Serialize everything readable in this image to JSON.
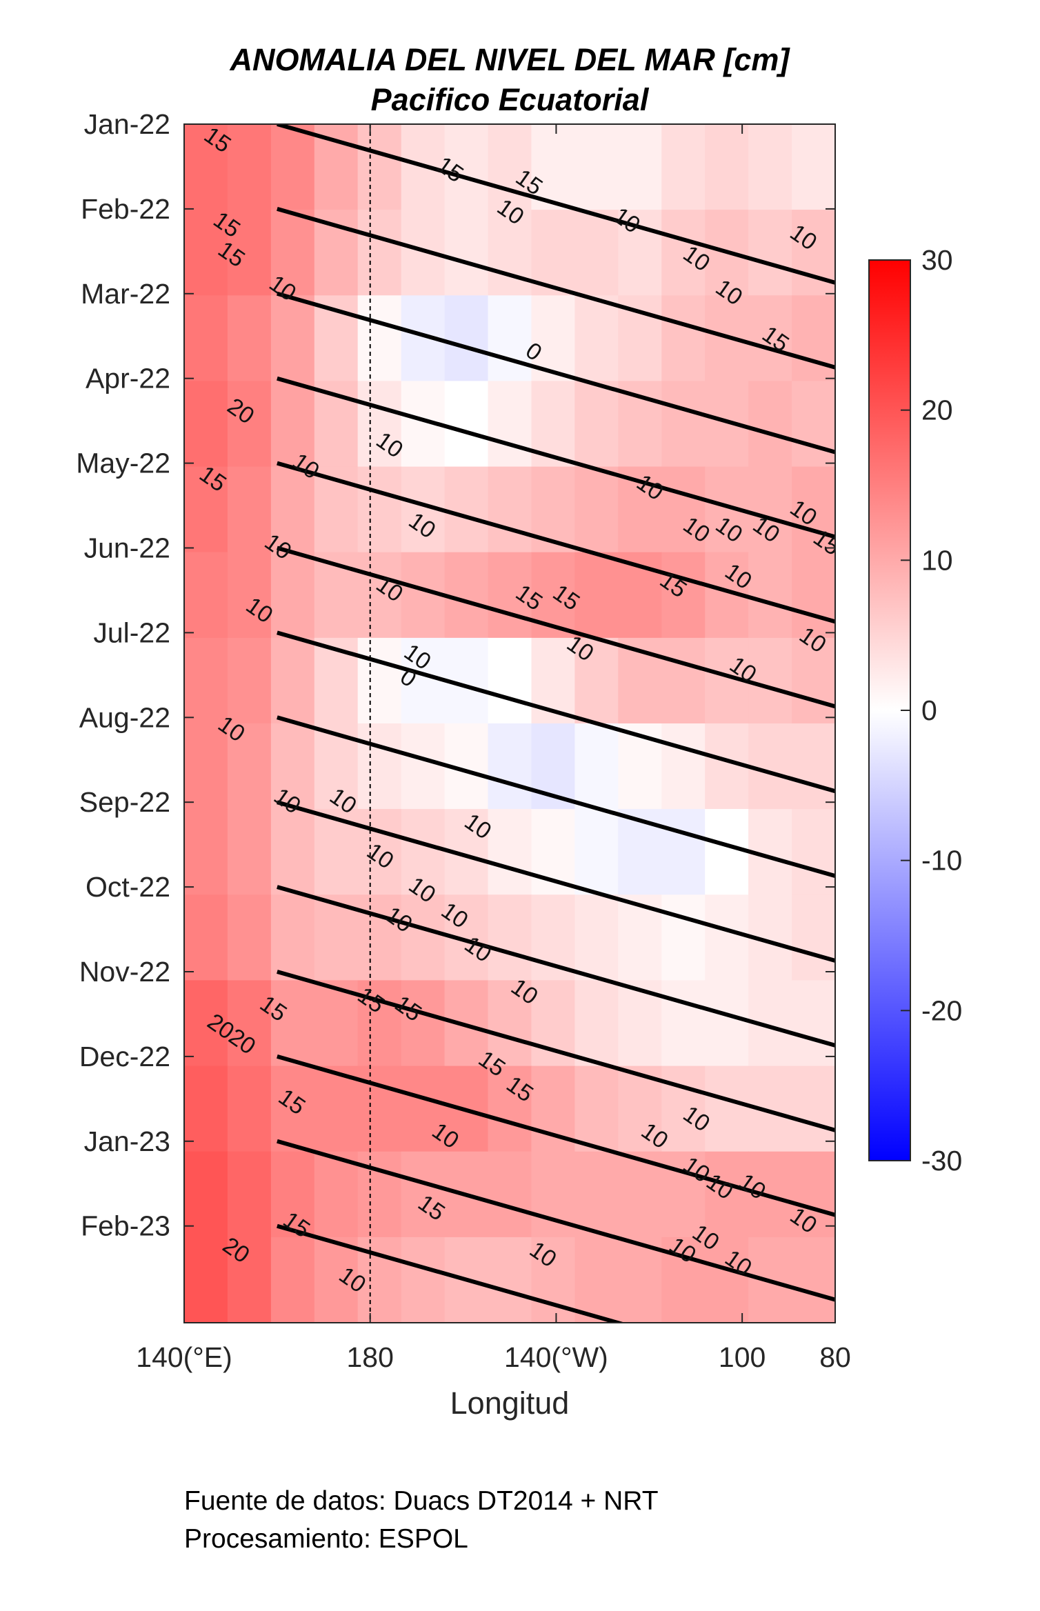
{
  "chart_data": {
    "type": "heatmap",
    "title": "ANOMALIA DEL NIVEL DEL MAR [cm]",
    "subtitle": "Pacifico Ecuatorial",
    "xlabel": "Longitud",
    "ylabel": "",
    "x_axis": {
      "range": [
        140,
        280
      ],
      "ticks": [
        {
          "value": 140,
          "label": "140(°E)"
        },
        {
          "value": 180,
          "label": "180"
        },
        {
          "value": 220,
          "label": "140(°W)"
        },
        {
          "value": 260,
          "label": "100"
        },
        {
          "value": 280,
          "label": "80"
        }
      ]
    },
    "y_axis": {
      "direction": "time increases downward",
      "ticks": [
        "Jan-22",
        "Feb-22",
        "Mar-22",
        "Apr-22",
        "May-22",
        "Jun-22",
        "Jul-22",
        "Aug-22",
        "Sep-22",
        "Oct-22",
        "Nov-22",
        "Dec-22",
        "Jan-23",
        "Feb-23"
      ]
    },
    "colorbar": {
      "range": [
        -30,
        30
      ],
      "ticks": [
        30,
        20,
        10,
        0,
        -10,
        -20,
        -30
      ],
      "colors": {
        "max": "#ff0000",
        "zero": "#ffffff",
        "min": "#0000ff"
      }
    },
    "contour_levels": [
      0,
      10,
      15,
      20
    ],
    "reference_line": {
      "lon": 180,
      "style": "dashed"
    },
    "kelvin_wave_lines": {
      "count": 14,
      "color": "#000000"
    },
    "rows": [
      {
        "month": "Jan-22",
        "sla": [
          17,
          16,
          14,
          10,
          7,
          4,
          3,
          4,
          2,
          2,
          2,
          4,
          5,
          4,
          3
        ]
      },
      {
        "month": "Feb-22",
        "sla": [
          17,
          16,
          13,
          9,
          6,
          4,
          3,
          4,
          5,
          5,
          4,
          6,
          7,
          6,
          7
        ]
      },
      {
        "month": "Mar-22",
        "sla": [
          16,
          14,
          11,
          6,
          1,
          -2,
          -3,
          -1,
          2,
          4,
          5,
          7,
          8,
          8,
          9
        ]
      },
      {
        "month": "Apr-22",
        "sla": [
          17,
          15,
          11,
          7,
          3,
          1,
          0,
          2,
          4,
          6,
          7,
          8,
          8,
          9,
          8
        ]
      },
      {
        "month": "May-22",
        "sla": [
          16,
          14,
          10,
          7,
          6,
          5,
          6,
          7,
          8,
          9,
          10,
          10,
          9,
          9,
          10
        ]
      },
      {
        "month": "Jun-22",
        "sla": [
          15,
          14,
          10,
          8,
          8,
          9,
          10,
          11,
          12,
          13,
          13,
          12,
          10,
          9,
          10
        ]
      },
      {
        "month": "Jul-22",
        "sla": [
          14,
          13,
          9,
          5,
          1,
          -1,
          -1,
          0,
          3,
          6,
          8,
          8,
          7,
          7,
          8
        ]
      },
      {
        "month": "Aug-22",
        "sla": [
          14,
          12,
          8,
          5,
          3,
          2,
          1,
          -2,
          -3,
          -1,
          1,
          2,
          4,
          5,
          5
        ]
      },
      {
        "month": "Sep-22",
        "sla": [
          14,
          12,
          8,
          6,
          6,
          5,
          4,
          2,
          1,
          -1,
          -2,
          -2,
          0,
          3,
          4
        ]
      },
      {
        "month": "Oct-22",
        "sla": [
          15,
          13,
          9,
          8,
          8,
          7,
          6,
          5,
          4,
          3,
          2,
          1,
          2,
          3,
          4
        ]
      },
      {
        "month": "Nov-22",
        "sla": [
          18,
          16,
          12,
          12,
          13,
          12,
          10,
          8,
          6,
          4,
          3,
          2,
          2,
          3,
          3
        ]
      },
      {
        "month": "Dec-22",
        "sla": [
          19,
          17,
          14,
          14,
          14,
          14,
          14,
          12,
          10,
          8,
          7,
          6,
          5,
          5,
          5
        ]
      },
      {
        "month": "Jan-23",
        "sla": [
          20,
          18,
          15,
          13,
          12,
          11,
          11,
          11,
          10,
          10,
          10,
          10,
          11,
          11,
          11
        ]
      },
      {
        "month": "Feb-23",
        "sla": [
          20,
          18,
          14,
          12,
          10,
          9,
          8,
          8,
          9,
          10,
          10,
          11,
          11,
          10,
          10
        ]
      }
    ],
    "contour_labels": [
      {
        "text": "15",
        "lon": 147,
        "month": 0.2
      },
      {
        "text": "15",
        "lon": 197,
        "month": 0.55
      },
      {
        "text": "15",
        "lon": 214,
        "month": 0.7
      },
      {
        "text": "10",
        "lon": 210,
        "month": 1.05
      },
      {
        "text": "10",
        "lon": 235,
        "month": 1.15
      },
      {
        "text": "15",
        "lon": 149,
        "month": 1.2
      },
      {
        "text": "15",
        "lon": 150,
        "month": 1.55
      },
      {
        "text": "10",
        "lon": 250,
        "month": 1.6
      },
      {
        "text": "10",
        "lon": 273,
        "month": 1.35
      },
      {
        "text": "10",
        "lon": 161,
        "month": 1.95
      },
      {
        "text": "10",
        "lon": 257,
        "month": 2.0
      },
      {
        "text": "15",
        "lon": 267,
        "month": 2.55
      },
      {
        "text": "0",
        "lon": 215,
        "month": 2.7
      },
      {
        "text": "20",
        "lon": 152,
        "month": 3.4
      },
      {
        "text": "10",
        "lon": 184,
        "month": 3.8
      },
      {
        "text": "15",
        "lon": 146,
        "month": 4.2
      },
      {
        "text": "10",
        "lon": 166,
        "month": 4.05
      },
      {
        "text": "10",
        "lon": 240,
        "month": 4.3
      },
      {
        "text": "10",
        "lon": 191,
        "month": 4.75
      },
      {
        "text": "10",
        "lon": 250,
        "month": 4.8
      },
      {
        "text": "10",
        "lon": 257,
        "month": 4.8
      },
      {
        "text": "10",
        "lon": 265,
        "month": 4.8
      },
      {
        "text": "10",
        "lon": 273,
        "month": 4.6
      },
      {
        "text": "15",
        "lon": 278,
        "month": 4.95
      },
      {
        "text": "10",
        "lon": 160,
        "month": 5.0
      },
      {
        "text": "10",
        "lon": 184,
        "month": 5.5
      },
      {
        "text": "15",
        "lon": 214,
        "month": 5.6
      },
      {
        "text": "15",
        "lon": 222,
        "month": 5.6
      },
      {
        "text": "15",
        "lon": 245,
        "month": 5.45
      },
      {
        "text": "10",
        "lon": 259,
        "month": 5.35
      },
      {
        "text": "10",
        "lon": 156,
        "month": 5.75
      },
      {
        "text": "10",
        "lon": 225,
        "month": 6.2
      },
      {
        "text": "10",
        "lon": 275,
        "month": 6.1
      },
      {
        "text": "10",
        "lon": 260,
        "month": 6.45
      },
      {
        "text": "10",
        "lon": 190,
        "month": 6.3
      },
      {
        "text": "0",
        "lon": 188,
        "month": 6.55
      },
      {
        "text": "10",
        "lon": 150,
        "month": 7.15
      },
      {
        "text": "10",
        "lon": 162,
        "month": 8.0
      },
      {
        "text": "10",
        "lon": 174,
        "month": 8.0
      },
      {
        "text": "10",
        "lon": 203,
        "month": 8.3
      },
      {
        "text": "10",
        "lon": 182,
        "month": 8.65
      },
      {
        "text": "10",
        "lon": 191,
        "month": 9.05
      },
      {
        "text": "10",
        "lon": 186,
        "month": 9.4
      },
      {
        "text": "10",
        "lon": 198,
        "month": 9.35
      },
      {
        "text": "10",
        "lon": 203,
        "month": 9.75
      },
      {
        "text": "10",
        "lon": 213,
        "month": 10.25
      },
      {
        "text": "15",
        "lon": 159,
        "month": 10.45
      },
      {
        "text": "15",
        "lon": 180,
        "month": 10.35
      },
      {
        "text": "15",
        "lon": 188,
        "month": 10.45
      },
      {
        "text": "2020",
        "lon": 150,
        "month": 10.75
      },
      {
        "text": "15",
        "lon": 206,
        "month": 11.1
      },
      {
        "text": "15",
        "lon": 212,
        "month": 11.4
      },
      {
        "text": "15",
        "lon": 163,
        "month": 11.55
      },
      {
        "text": "10",
        "lon": 196,
        "month": 11.95
      },
      {
        "text": "10",
        "lon": 241,
        "month": 11.95
      },
      {
        "text": "10",
        "lon": 250,
        "month": 11.75
      },
      {
        "text": "10",
        "lon": 250,
        "month": 12.35
      },
      {
        "text": "10",
        "lon": 255,
        "month": 12.55
      },
      {
        "text": "10",
        "lon": 262,
        "month": 12.55
      },
      {
        "text": "10",
        "lon": 273,
        "month": 12.95
      },
      {
        "text": "15",
        "lon": 193,
        "month": 12.8
      },
      {
        "text": "15",
        "lon": 164,
        "month": 13.0
      },
      {
        "text": "10",
        "lon": 217,
        "month": 13.35
      },
      {
        "text": "10",
        "lon": 247,
        "month": 13.3
      },
      {
        "text": "10",
        "lon": 252,
        "month": 13.15
      },
      {
        "text": "10",
        "lon": 259,
        "month": 13.45
      },
      {
        "text": "20",
        "lon": 151,
        "month": 13.3
      },
      {
        "text": "10",
        "lon": 176,
        "month": 13.65
      }
    ]
  },
  "footer": {
    "line1": "Fuente de datos: Duacs DT2014 + NRT",
    "line2": "Procesamiento: ESPOL"
  }
}
